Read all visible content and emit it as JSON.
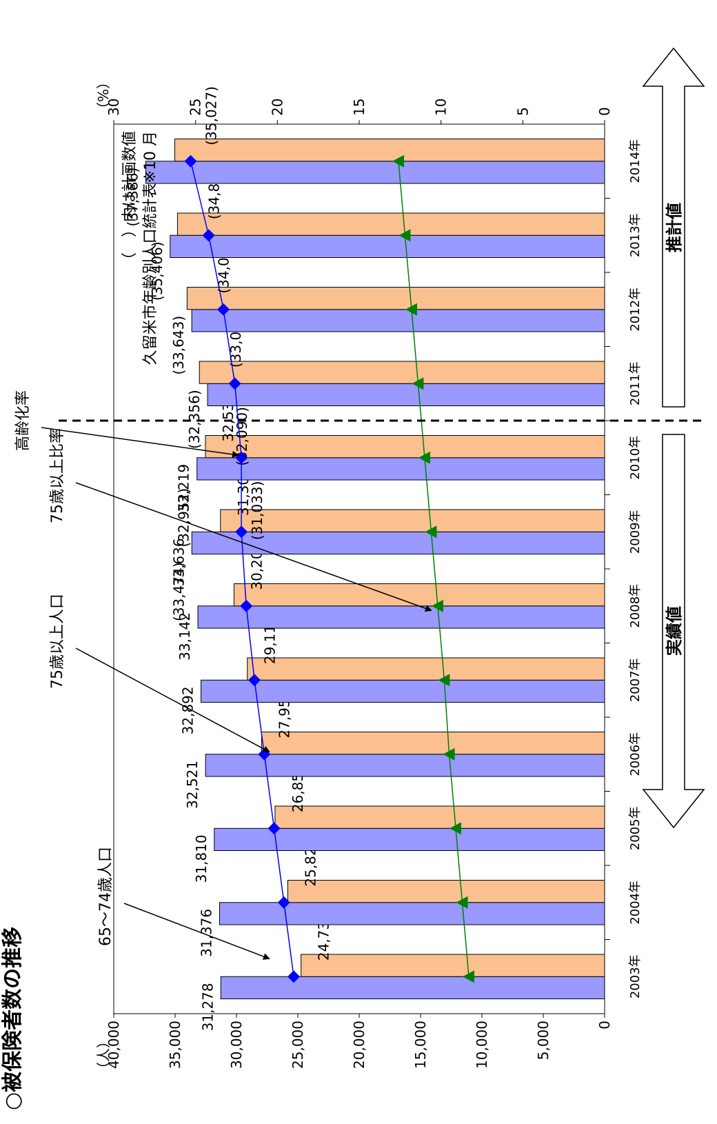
{
  "page_title": "○被保険者数の推移",
  "chart_data": {
    "type": "bar",
    "orientation": "horizontal",
    "categories": [
      "2003年",
      "2004年",
      "2005年",
      "2006年",
      "2007年",
      "2008年",
      "2009年",
      "2010年",
      "2011年",
      "2012年",
      "2013年",
      "2014年"
    ],
    "series": [
      {
        "name": "65～74歳人口",
        "type": "bar",
        "axis": "left",
        "values": [
          31278,
          31376,
          31810,
          32521,
          32892,
          33142,
          33636,
          33219,
          32356,
          33643,
          35406,
          37386
        ],
        "labels": [
          "31,278",
          "31,376",
          "31,810",
          "32,521",
          "32,892",
          "33,142",
          "33,636",
          "33,219",
          "(32,356)",
          "(33,643)",
          "(35,406)",
          "(37,386)"
        ],
        "planned_labels": [
          "",
          "",
          "",
          "",
          "",
          "",
          "(33,474)",
          "(32,952)",
          "",
          "",
          "",
          ""
        ],
        "color": "#9999ff"
      },
      {
        "name": "75歳以上人口",
        "type": "bar",
        "axis": "left",
        "values": [
          24738,
          25824,
          26857,
          27952,
          29117,
          30203,
          31305,
          32532,
          33021,
          34025,
          34809,
          35027
        ],
        "labels": [
          "24,738",
          "25,824",
          "26,857",
          "27,952",
          "29,117",
          "30,203",
          "31,305",
          "32,532",
          "(33,021)",
          "(34,025)",
          "(34,809)",
          "(35,027)"
        ],
        "planned_labels": [
          "",
          "",
          "",
          "",
          "",
          "",
          "(31,033)",
          "(32,090)",
          "",
          "",
          "",
          ""
        ],
        "color": "#fac090"
      },
      {
        "name": "高齢化率",
        "type": "line",
        "axis": "right",
        "values": [
          19.0,
          19.6,
          20.2,
          20.8,
          21.4,
          21.9,
          22.2,
          22.2,
          22.6,
          23.3,
          24.2,
          25.3
        ],
        "color": "#0000ff",
        "marker": "diamond"
      },
      {
        "name": "75歳以上比率",
        "type": "line",
        "axis": "right",
        "values": [
          8.3,
          8.7,
          9.1,
          9.5,
          9.8,
          10.2,
          10.6,
          11.0,
          11.4,
          11.8,
          12.2,
          12.6
        ],
        "color": "#008000",
        "marker": "triangle"
      }
    ],
    "left_axis": {
      "unit": "（人）",
      "range": [
        0,
        40000
      ],
      "ticks": [
        "0",
        "5,000",
        "10,000",
        "15,000",
        "20,000",
        "25,000",
        "30,000",
        "35,000",
        "40,000"
      ]
    },
    "right_axis": {
      "unit": "（%）",
      "range": [
        0,
        30
      ],
      "ticks": [
        "0",
        "5",
        "10",
        "15",
        "20",
        "25",
        "30"
      ]
    },
    "annotations": {
      "note_paren": "（　）内は計画数値",
      "source": "久留米市年齢別人口統計表※10 月",
      "actual": "実績値",
      "estimated": "推計値",
      "pointer_6574": "65～74歳人口",
      "pointer_75": "75歳以上人口",
      "pointer_75ratio": "75歳以上比率",
      "pointer_aging": "高齢化率"
    },
    "grid": false
  }
}
